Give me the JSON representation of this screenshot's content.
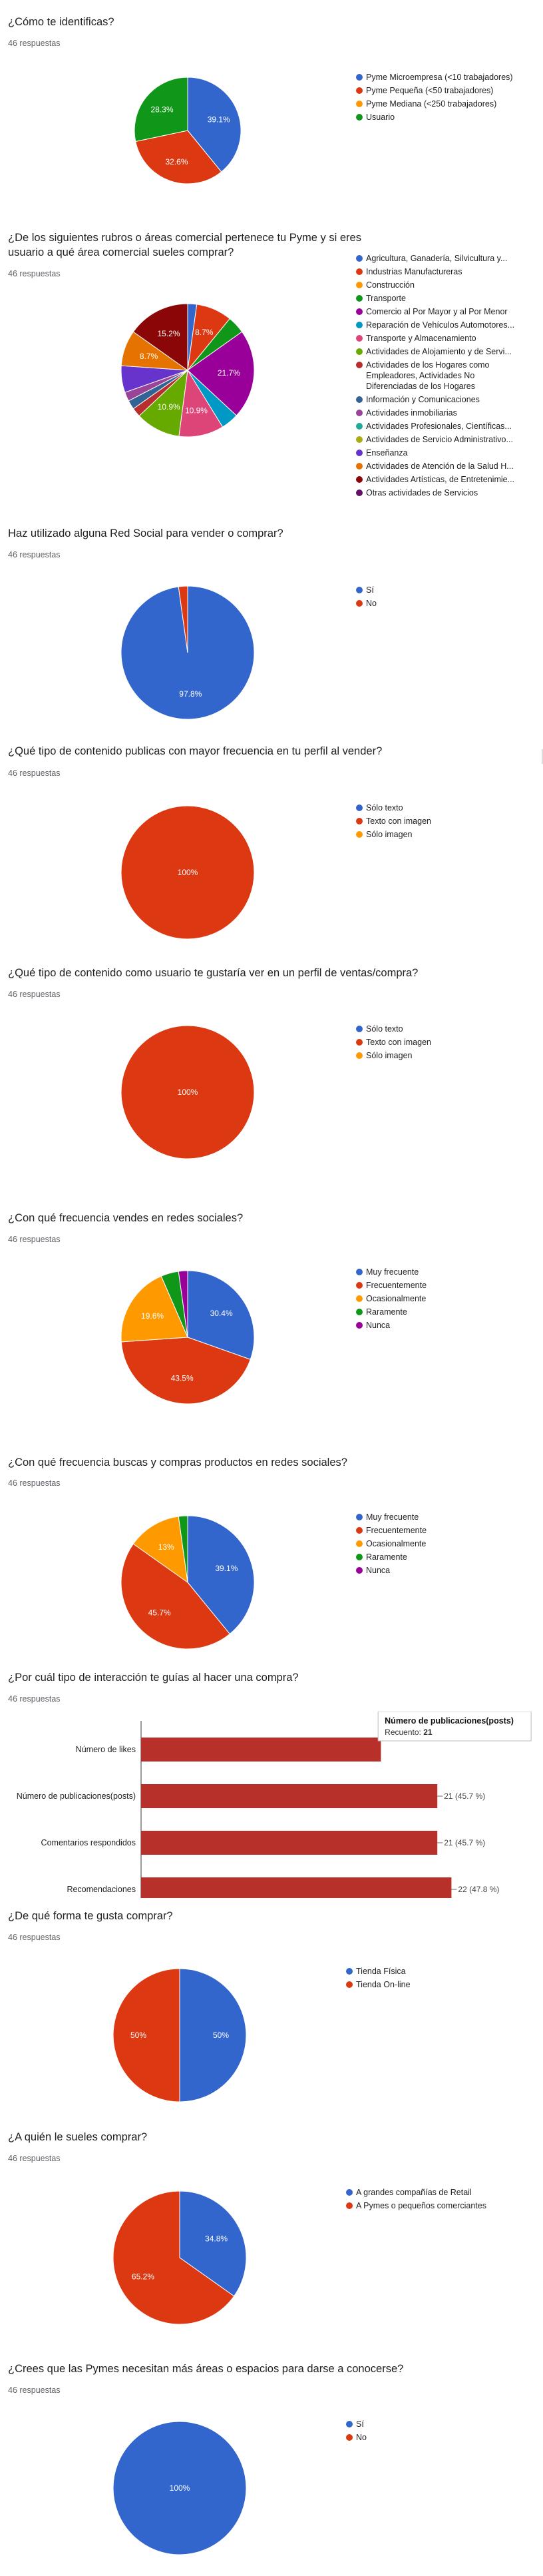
{
  "colors": {
    "blue": "#3366cc",
    "red": "#dc3912",
    "orange": "#ff9900",
    "green": "#109618",
    "purple": "#990099",
    "teal": "#0099c6",
    "pink": "#dd4477",
    "lime": "#66aa00",
    "darkred": "#b82e2e",
    "navy": "#316395",
    "violet": "#994499",
    "cyan": "#22aa99",
    "olive": "#aaaa11",
    "indigo": "#6633cc",
    "amber": "#e67300",
    "maroon": "#8b0707"
  },
  "questions": [
    {
      "id": "q1",
      "title": "¿Cómo te identificas?",
      "count": "46 respuestas",
      "chart_data": {
        "type": "pie",
        "slices": [
          {
            "label": "Pyme Microempresa (<10 trabajadores)",
            "value": 39.1,
            "pct_label": "39.1%",
            "color": "#3366cc"
          },
          {
            "label": "Pyme Pequeña (<50 trabajadores)",
            "value": 32.6,
            "pct_label": "32.6%",
            "color": "#dc3912"
          },
          {
            "label": "Pyme Mediana (<250 trabajadores)",
            "value": 0,
            "pct_label": "",
            "color": "#ff9900"
          },
          {
            "label": "Usuario",
            "value": 28.3,
            "pct_label": "28.3%",
            "color": "#109618"
          }
        ]
      }
    },
    {
      "id": "q2",
      "title": "¿De los siguientes rubros o áreas comercial pertenece tu Pyme y si eres usuario a qué área comercial sueles comprar?",
      "count": "46 respuestas",
      "chart_data": {
        "type": "pie",
        "slices": [
          {
            "label": "Agricultura, Ganadería, Silvicultura y...",
            "value": 2.2,
            "pct_label": "",
            "color": "#3366cc"
          },
          {
            "label": "Industrias Manufactureras",
            "value": 8.7,
            "pct_label": "8.7%",
            "color": "#dc3912"
          },
          {
            "label": "Construcción",
            "value": 0,
            "pct_label": "",
            "color": "#ff9900"
          },
          {
            "label": "Transporte",
            "value": 4.3,
            "pct_label": "",
            "color": "#109618"
          },
          {
            "label": "Comercio al Por Mayor y al Por Menor",
            "value": 21.7,
            "pct_label": "21.7%",
            "color": "#990099"
          },
          {
            "label": "Reparación de Vehículos Automotores...",
            "value": 4.3,
            "pct_label": "",
            "color": "#0099c6"
          },
          {
            "label": "Transporte y Almacenamiento",
            "value": 10.9,
            "pct_label": "10.9%",
            "color": "#dd4477"
          },
          {
            "label": "Actividades de Alojamiento y de Servi...",
            "value": 10.9,
            "pct_label": "10.9%",
            "color": "#66aa00"
          },
          {
            "label": "Actividades de los Hogares como Empleadores, Actividades No Diferenciadas de los Hogares",
            "value": 2.2,
            "pct_label": "",
            "color": "#b82e2e"
          },
          {
            "label": "Información y Comunicaciones",
            "value": 2.2,
            "pct_label": "",
            "color": "#316395"
          },
          {
            "label": "Actividades inmobiliarias",
            "value": 2.2,
            "pct_label": "",
            "color": "#994499"
          },
          {
            "label": "Actividades Profesionales, Científicas...",
            "value": 0,
            "pct_label": "",
            "color": "#22aa99"
          },
          {
            "label": "Actividades de Servicio Administrativo...",
            "value": 0,
            "pct_label": "",
            "color": "#aaaa11"
          },
          {
            "label": "Enseñanza",
            "value": 6.5,
            "pct_label": "",
            "color": "#6633cc"
          },
          {
            "label": "Actividades de Atención de la Salud H...",
            "value": 8.7,
            "pct_label": "8.7%",
            "color": "#e67300"
          },
          {
            "label": "Actividades Artísticas, de Entretenimie...",
            "value": 15.2,
            "pct_label": "15.2%",
            "color": "#8b0707"
          },
          {
            "label": "Otras actividades de Servicios",
            "value": 0,
            "pct_label": "",
            "color": "#651067"
          }
        ]
      }
    },
    {
      "id": "q3",
      "title": "Haz utilizado alguna Red Social para vender o comprar?",
      "count": "46 respuestas",
      "chart_data": {
        "type": "pie",
        "slices": [
          {
            "label": "Sí",
            "value": 97.8,
            "pct_label": "97.8%",
            "color": "#3366cc"
          },
          {
            "label": "No",
            "value": 2.2,
            "pct_label": "",
            "color": "#dc3912"
          }
        ]
      }
    },
    {
      "id": "q4",
      "title": "¿Qué tipo de contenido publicas con mayor frecuencia en tu perfil al vender?",
      "count": "46 respuestas",
      "chart_data": {
        "type": "pie",
        "slices": [
          {
            "label": "Sólo texto",
            "value": 0,
            "pct_label": "",
            "color": "#3366cc"
          },
          {
            "label": "Texto con imagen",
            "value": 100,
            "pct_label": "100%",
            "color": "#dc3912"
          },
          {
            "label": "Sólo imagen",
            "value": 0,
            "pct_label": "",
            "color": "#ff9900"
          }
        ]
      }
    },
    {
      "id": "q5",
      "title": "¿Qué tipo de contenido como usuario te gustaría ver en un perfil de ventas/compra?",
      "count": "46 respuestas",
      "chart_data": {
        "type": "pie",
        "slices": [
          {
            "label": "Sólo texto",
            "value": 0,
            "pct_label": "",
            "color": "#3366cc"
          },
          {
            "label": "Texto con imagen",
            "value": 100,
            "pct_label": "100%",
            "color": "#dc3912"
          },
          {
            "label": "Sólo imagen",
            "value": 0,
            "pct_label": "",
            "color": "#ff9900"
          }
        ]
      }
    },
    {
      "id": "q6",
      "title": "¿Con qué frecuencia vendes en redes sociales?",
      "count": "46 respuestas",
      "chart_data": {
        "type": "pie",
        "slices": [
          {
            "label": "Muy frecuente",
            "value": 30.4,
            "pct_label": "30.4%",
            "color": "#3366cc"
          },
          {
            "label": "Frecuentemente",
            "value": 43.5,
            "pct_label": "43.5%",
            "color": "#dc3912"
          },
          {
            "label": "Ocasionalmente",
            "value": 19.6,
            "pct_label": "19.6%",
            "color": "#ff9900"
          },
          {
            "label": "Raramente",
            "value": 4.3,
            "pct_label": "",
            "color": "#109618"
          },
          {
            "label": "Nunca",
            "value": 2.2,
            "pct_label": "",
            "color": "#990099"
          }
        ]
      }
    },
    {
      "id": "q7",
      "title": "¿Con qué frecuencia buscas y compras productos en redes sociales?",
      "count": "46 respuestas",
      "chart_data": {
        "type": "pie",
        "slices": [
          {
            "label": "Muy frecuente",
            "value": 39.1,
            "pct_label": "39.1%",
            "color": "#3366cc"
          },
          {
            "label": "Frecuentemente",
            "value": 45.7,
            "pct_label": "45.7%",
            "color": "#dc3912"
          },
          {
            "label": "Ocasionalmente",
            "value": 13,
            "pct_label": "13%",
            "color": "#ff9900"
          },
          {
            "label": "Raramente",
            "value": 2.2,
            "pct_label": "",
            "color": "#109618"
          },
          {
            "label": "Nunca",
            "value": 0,
            "pct_label": "",
            "color": "#990099"
          }
        ]
      }
    },
    {
      "id": "q8",
      "title": "¿Por cuál tipo de interacción te guías al hacer una compra?",
      "count": "46 respuestas",
      "chart_data": {
        "type": "bar",
        "orientation": "horizontal",
        "categories": [
          "Número de likes",
          "Número de publicaciones(posts)",
          "Comentarios respondidos",
          "Recomendaciones"
        ],
        "values": [
          17,
          21,
          21,
          22
        ],
        "labels": [
          "",
          "21 (45.7 %)",
          "21 (45.7 %)",
          "22 (47.8 %)"
        ],
        "xticks": [
          "0",
          "5",
          "10",
          "15",
          "20",
          "25"
        ],
        "xlim": [
          0,
          25
        ],
        "color": "#b8302a",
        "tooltip": {
          "title": "Número de publicaciones(posts)",
          "label": "Recuento:",
          "value": "21"
        }
      }
    },
    {
      "id": "q9",
      "title": "¿De qué forma te gusta comprar?",
      "count": "46 respuestas",
      "chart_data": {
        "type": "pie",
        "slices": [
          {
            "label": "Tienda Física",
            "value": 50,
            "pct_label": "50%",
            "color": "#3366cc"
          },
          {
            "label": "Tienda On-line",
            "value": 50,
            "pct_label": "50%",
            "color": "#dc3912"
          }
        ]
      }
    },
    {
      "id": "q10",
      "title": "¿A quién le sueles comprar?",
      "count": "46 respuestas",
      "chart_data": {
        "type": "pie",
        "slices": [
          {
            "label": "A grandes compañías de Retail",
            "value": 34.8,
            "pct_label": "34.8%",
            "color": "#3366cc"
          },
          {
            "label": "A Pymes o pequeños comerciantes",
            "value": 65.2,
            "pct_label": "65.2%",
            "color": "#dc3912"
          }
        ]
      }
    },
    {
      "id": "q11",
      "title": "¿Crees que las Pymes necesitan más áreas o espacios para darse a conocerse?",
      "count": "46 respuestas",
      "chart_data": {
        "type": "pie",
        "slices": [
          {
            "label": "Sí",
            "value": 100,
            "pct_label": "100%",
            "color": "#3366cc"
          },
          {
            "label": "No",
            "value": 0,
            "pct_label": "",
            "color": "#dc3912"
          }
        ]
      }
    }
  ]
}
